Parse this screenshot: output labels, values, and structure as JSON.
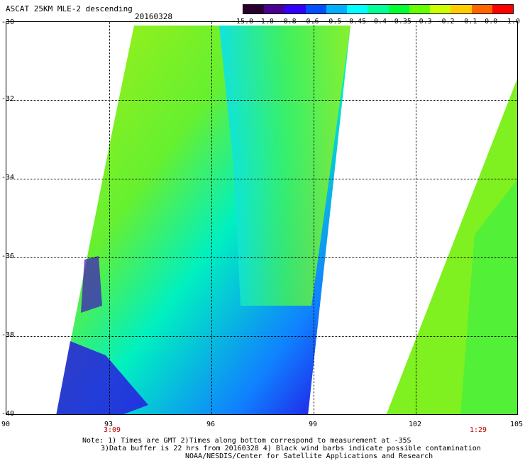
{
  "header": {
    "title": "ASCAT 25KM MLE-2 descending",
    "date": "20160328"
  },
  "colorbar": {
    "labels": [
      "-15.0",
      "-1.0",
      "-0.8",
      "-0.6",
      "-0.5",
      "-0.45",
      "-0.4",
      "-0.35",
      "-0.3",
      "-0.2",
      "-0.1",
      "0.0",
      "1.0"
    ],
    "colors": [
      "#2a0030",
      "#4a0090",
      "#3300ff",
      "#0050ff",
      "#00b0ff",
      "#00ffff",
      "#00ff99",
      "#00ff33",
      "#66ff00",
      "#ccff00",
      "#ffcc00",
      "#ff6600",
      "#ff0000"
    ]
  },
  "map": {
    "lat_labels": [
      "-30",
      "-32",
      "-34",
      "-36",
      "-38",
      "-40"
    ],
    "lon_labels": [
      "90",
      "93",
      "96",
      "99",
      "102",
      "105"
    ],
    "time_labels": [
      "3:09",
      "1:29"
    ],
    "swath_colors": {
      "main": "#5cee2a",
      "east": "#7ff020",
      "dry": "#a6f014",
      "blue": "#2060ff",
      "cyan": "#00e6ff"
    }
  },
  "notes": {
    "line1": "Note: 1) Times are GMT 2)Times along bottom correspond to measurement at -35S",
    "line2": "3)Data buffer is 22 hrs from 20160328 4) Black wind barbs indicate possible contamination",
    "line3": "NOAA/NESDIS/Center for Satellite Applications and Research"
  }
}
